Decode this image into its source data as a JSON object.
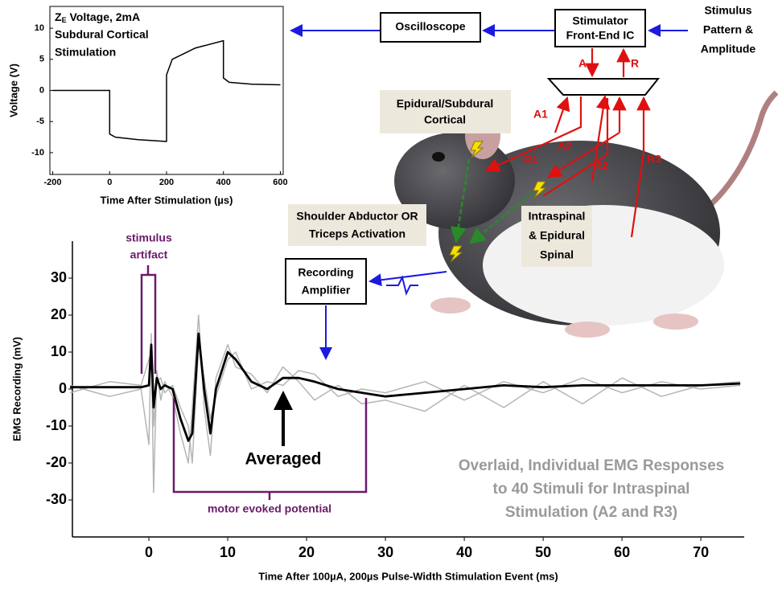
{
  "chart_data": [
    {
      "type": "line",
      "title": [
        "Z",
        "E",
        " Voltage, 2mA",
        "Subdural Cortical",
        "Stimulation"
      ],
      "x_label": "Time After Stimulation (µs)",
      "y_label": "Voltage (V)",
      "x": [
        -200,
        -100,
        0,
        0,
        20,
        100,
        200,
        200,
        220,
        300,
        400,
        400,
        420,
        500,
        600
      ],
      "series": [
        {
          "color": "#000000",
          "values": [
            0,
            0,
            0,
            -7,
            -7.5,
            -7.9,
            -8.2,
            2.5,
            5,
            6.8,
            8,
            2,
            1.3,
            1,
            0.9
          ]
        }
      ],
      "xlim": [
        -210,
        610
      ],
      "xticks": [
        -200,
        0,
        200,
        400,
        600
      ],
      "ylim": [
        -13.5,
        13.5
      ],
      "yticks": [
        -10,
        -5,
        0,
        5,
        10
      ]
    },
    {
      "type": "line",
      "x_label": "Time After 100µA, 200µs Pulse-Width Stimulation Event (ms)",
      "y_label": "EMG Recording (mV)",
      "x": [
        -10,
        -5,
        -1,
        0,
        0.3,
        0.6,
        1,
        1.5,
        2,
        3,
        4,
        5,
        5.5,
        6.3,
        7,
        7.8,
        8.5,
        10,
        11,
        13,
        15,
        17,
        19,
        21,
        24,
        27,
        30,
        35,
        40,
        45,
        50,
        55,
        60,
        65,
        70,
        75
      ],
      "series": [
        {
          "color": "#b5b5b5",
          "values": [
            1,
            -2,
            0,
            -15,
            15,
            -28,
            5,
            -3,
            2,
            -2,
            -12,
            -20,
            -5,
            20,
            -5,
            -18,
            3,
            12,
            6,
            4,
            -1,
            6,
            2,
            -3,
            1,
            -4,
            -3,
            -6,
            1,
            -5,
            2,
            -4,
            3,
            -2,
            1,
            2
          ]
        },
        {
          "color": "#b5b5b5",
          "values": [
            -1,
            2,
            1,
            8,
            10,
            -10,
            2,
            3,
            -1,
            1,
            -5,
            -10,
            -20,
            12,
            3,
            -8,
            -2,
            8,
            10,
            0,
            2,
            1,
            5,
            4,
            -2,
            0,
            -1,
            2,
            -3,
            2,
            -1,
            3,
            -1,
            2,
            0,
            1
          ]
        },
        {
          "color": "#000000",
          "values": [
            0.5,
            0.5,
            0.5,
            1,
            12,
            -5,
            3,
            0,
            1,
            0,
            -8,
            -14,
            -12,
            15,
            0,
            -12,
            0,
            10,
            8,
            2,
            0,
            3,
            3,
            2,
            0,
            -1,
            -2,
            -1,
            0,
            1,
            0.5,
            1,
            1,
            1,
            1,
            1.5
          ]
        }
      ],
      "xlim": [
        -9.7,
        75.5
      ],
      "xticks": [
        0,
        10,
        20,
        30,
        40,
        50,
        60,
        70
      ],
      "ylim": [
        -40,
        40
      ],
      "yticks": [
        -30,
        -20,
        -10,
        0,
        10,
        20,
        30
      ],
      "annotations": {
        "stimulus_artifact": [
          "stimulus",
          "artifact"
        ],
        "motor_evoked_potential": "motor evoked potential",
        "averaged": "Averaged",
        "overlaid_note": [
          "Overlaid, Individual EMG Responses",
          "to 40 Stimuli for Intraspinal",
          "Stimulation (A2 and R3)"
        ]
      }
    }
  ],
  "diagram": {
    "oscilloscope": "Oscilloscope",
    "stimulator": [
      "Stimulator",
      "Front-End IC"
    ],
    "stimulus_input": [
      "Stimulus",
      "Pattern &",
      "Amplitude"
    ],
    "recording_amplifier": [
      "Recording",
      "Amplifier"
    ],
    "epidural_cortical": [
      "Epidural/Subdural",
      "Cortical"
    ],
    "shoulder": [
      "Shoulder Abductor OR",
      "Triceps Activation"
    ],
    "intraspinal": [
      "Intraspinal",
      "& Epidural",
      "Spinal"
    ],
    "channels": {
      "A": "A",
      "R": "R",
      "A1": "A1",
      "R1": "R1",
      "A2": "A2",
      "R2": "R2",
      "R3": "R3"
    }
  }
}
